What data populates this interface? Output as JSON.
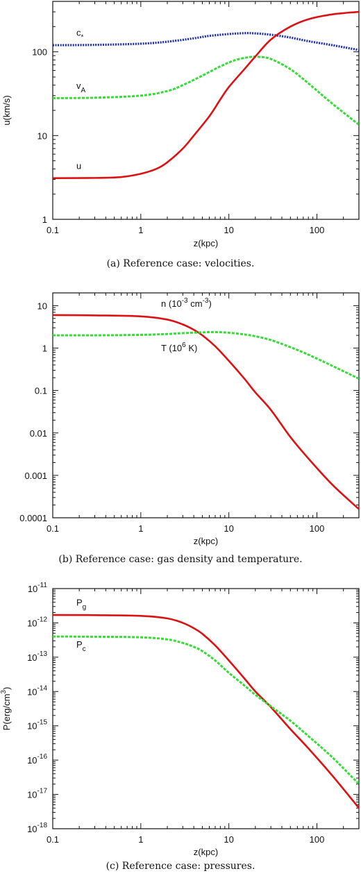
{
  "colors": {
    "red": "#dd1111",
    "green": "#33dd33",
    "blue": "#1a2cb0"
  },
  "chart_data": [
    {
      "type": "line",
      "caption": "(a) Reference case: velocities.",
      "xlabel": "z(kpc)",
      "ylabel": "u(km/s)",
      "xscale": "log",
      "yscale": "log",
      "xlim": [
        0.1,
        300
      ],
      "ylim": [
        1,
        400
      ],
      "xticks": [
        {
          "value": 0.1,
          "label": "0.1"
        },
        {
          "value": 1,
          "label": "1"
        },
        {
          "value": 10,
          "label": "10"
        },
        {
          "value": 100,
          "label": "100"
        }
      ],
      "yticks": [
        {
          "value": 1,
          "label": "1"
        },
        {
          "value": 10,
          "label": "10"
        },
        {
          "value": 100,
          "label": "100"
        }
      ],
      "series": [
        {
          "name": "c*",
          "label_main": "c",
          "label_sub": "*",
          "label_x": 0.1,
          "label_y": 155,
          "color": "#1a2cb0",
          "style": "dotted",
          "x": [
            0.1,
            0.3,
            1,
            2,
            4,
            6,
            10,
            15,
            20,
            30,
            50,
            80,
            150,
            300
          ],
          "y": [
            120,
            121,
            125,
            132,
            145,
            155,
            163,
            167,
            166,
            160,
            148,
            134,
            120,
            105
          ]
        },
        {
          "name": "vA",
          "label_main": "v",
          "label_sub": "A",
          "label_x": 0.1,
          "label_y": 36,
          "color": "#33dd33",
          "style": "dashed",
          "x": [
            0.1,
            0.3,
            1,
            2,
            3,
            5,
            8,
            12,
            18,
            22,
            30,
            50,
            80,
            150,
            300
          ],
          "y": [
            28,
            28.3,
            30,
            34,
            40,
            52,
            67,
            80,
            87,
            87,
            82,
            62,
            42,
            24,
            13.5
          ]
        },
        {
          "name": "u",
          "label_main": "u",
          "label_sub": "",
          "label_x": 0.1,
          "label_y": 4.0,
          "color": "#dd1111",
          "style": "solid",
          "x": [
            0.1,
            0.3,
            0.6,
            1,
            1.5,
            2,
            3,
            4,
            6,
            8,
            10,
            15,
            20,
            30,
            50,
            80,
            150,
            300
          ],
          "y": [
            3.1,
            3.12,
            3.2,
            3.5,
            4.0,
            4.8,
            7,
            10,
            17,
            27,
            38,
            62,
            88,
            140,
            200,
            245,
            280,
            300
          ]
        }
      ]
    },
    {
      "type": "line",
      "caption": "(b) Reference case: gas density and temperature.",
      "xlabel": "z(kpc)",
      "ylabel": "",
      "xscale": "log",
      "yscale": "log",
      "xlim": [
        0.1,
        300
      ],
      "ylim": [
        0.0001,
        20
      ],
      "xticks": [
        {
          "value": 0.1,
          "label": "0.1"
        },
        {
          "value": 1,
          "label": "1"
        },
        {
          "value": 10,
          "label": "10"
        },
        {
          "value": 100,
          "label": "100"
        }
      ],
      "yticks": [
        {
          "value": 0.0001,
          "label": "0.0001"
        },
        {
          "value": 0.001,
          "label": "0.001"
        },
        {
          "value": 0.01,
          "label": "0.01"
        },
        {
          "value": 0.1,
          "label": "0.1"
        },
        {
          "value": 1,
          "label": "1"
        },
        {
          "value": 10,
          "label": "10"
        }
      ],
      "series": [
        {
          "name": "n (10-3 cm-3)",
          "label_main": "n (10",
          "label_sup": "-3",
          "label_tail": " cm",
          "label_sup2": "-3",
          "label_end": ")",
          "label_x": 1.7,
          "label_y": 9.5,
          "color": "#dd1111",
          "style": "solid",
          "x": [
            0.1,
            0.3,
            1,
            2,
            3,
            4,
            5,
            7,
            10,
            15,
            20,
            30,
            50,
            80,
            150,
            300
          ],
          "y": [
            6.0,
            5.9,
            5.6,
            4.7,
            3.6,
            2.7,
            2.0,
            1.1,
            0.5,
            0.19,
            0.09,
            0.035,
            0.008,
            0.0025,
            0.0006,
            0.00016
          ]
        },
        {
          "name": "T (106 K)",
          "label_main": "T (10",
          "label_sup": "6",
          "label_tail": " K)",
          "label_sup2": "",
          "label_end": "",
          "label_x": 1.7,
          "label_y": 0.85,
          "color": "#33dd33",
          "style": "dashed",
          "x": [
            0.1,
            0.3,
            1,
            2,
            3,
            5,
            7,
            10,
            15,
            20,
            30,
            50,
            80,
            150,
            300
          ],
          "y": [
            2.0,
            2.0,
            2.05,
            2.15,
            2.25,
            2.35,
            2.38,
            2.3,
            2.1,
            1.9,
            1.55,
            1.05,
            0.7,
            0.38,
            0.19
          ]
        }
      ]
    },
    {
      "type": "line",
      "caption": "(c) Reference case: pressures.",
      "xlabel": "z(kpc)",
      "ylabel_main": "P(erg/cm",
      "ylabel_sup": "3",
      "ylabel_end": ")",
      "xscale": "log",
      "yscale": "log",
      "xlim": [
        0.1,
        300
      ],
      "ylim": [
        1e-18,
        1e-11
      ],
      "xticks": [
        {
          "value": 0.1,
          "label": "0.1"
        },
        {
          "value": 1,
          "label": "1"
        },
        {
          "value": 10,
          "label": "10"
        },
        {
          "value": 100,
          "label": "100"
        }
      ],
      "yticks": [
        {
          "value": 1e-18,
          "base": "10",
          "exp": "-18"
        },
        {
          "value": 1e-17,
          "base": "10",
          "exp": "-17"
        },
        {
          "value": 1e-16,
          "base": "10",
          "exp": "-16"
        },
        {
          "value": 1e-15,
          "base": "10",
          "exp": "-15"
        },
        {
          "value": 1e-14,
          "base": "10",
          "exp": "-14"
        },
        {
          "value": 1e-13,
          "base": "10",
          "exp": "-13"
        },
        {
          "value": 1e-12,
          "base": "10",
          "exp": "-12"
        },
        {
          "value": 1e-11,
          "base": "10",
          "exp": "-11"
        }
      ],
      "series": [
        {
          "name": "Pg",
          "label_main": "P",
          "label_sub": "g",
          "label_x": 0.1,
          "label_y": 3.2e-12,
          "color": "#dd1111",
          "style": "solid",
          "x": [
            0.1,
            0.3,
            1,
            2,
            3,
            4,
            5,
            7,
            10,
            15,
            20,
            30,
            50,
            80,
            150,
            300
          ],
          "y": [
            1.7e-12,
            1.68e-12,
            1.6e-12,
            1.35e-12,
            1e-12,
            7e-13,
            4.8e-13,
            2.2e-13,
            8e-14,
            2.4e-14,
            1e-14,
            3.5e-15,
            8e-16,
            2.2e-16,
            3.5e-17,
            4e-18
          ]
        },
        {
          "name": "Pc",
          "label_main": "P",
          "label_sub": "c",
          "label_x": 0.1,
          "label_y": 1.9e-13,
          "color": "#33dd33",
          "style": "dashed",
          "x": [
            0.1,
            0.3,
            1,
            2,
            3,
            4,
            5,
            7,
            10,
            15,
            20,
            30,
            50,
            80,
            150,
            300
          ],
          "y": [
            4e-13,
            3.95e-13,
            3.8e-13,
            3.3e-13,
            2.6e-13,
            2e-13,
            1.5e-13,
            8e-14,
            3.5e-14,
            1.5e-14,
            8e-15,
            3.7e-15,
            1.4e-15,
            5e-16,
            1.2e-16,
            2e-17
          ]
        }
      ]
    }
  ]
}
